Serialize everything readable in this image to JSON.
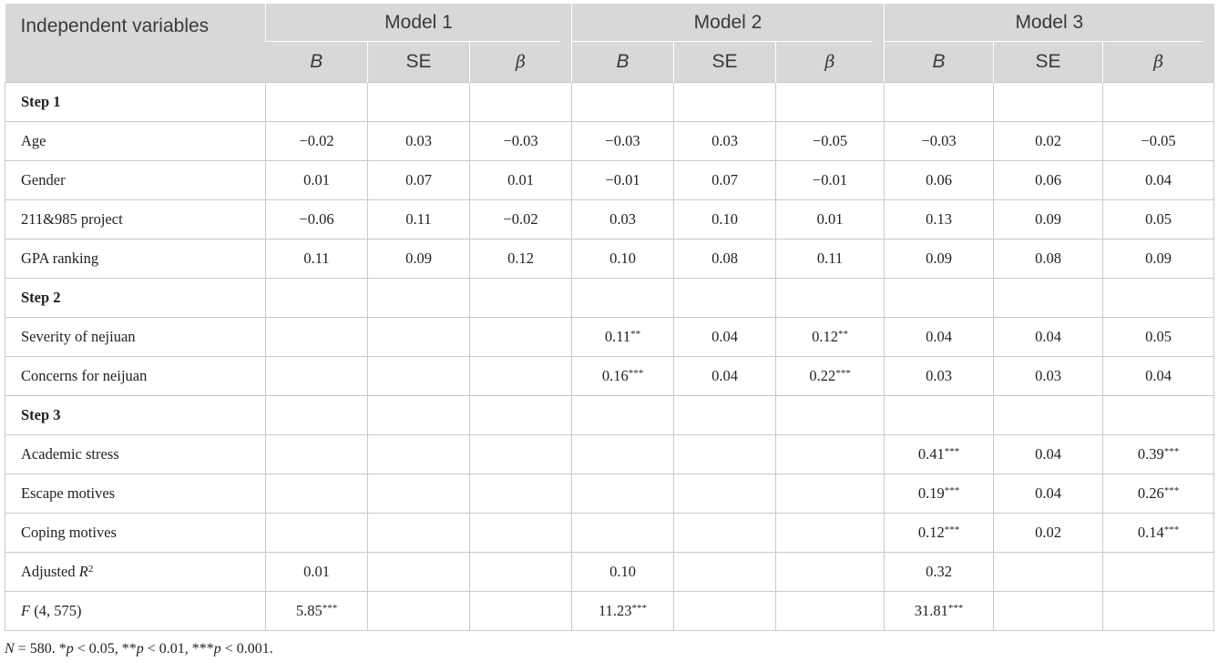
{
  "header": {
    "row_label": "Independent variables",
    "models": [
      "Model 1",
      "Model 2",
      "Model 3"
    ],
    "stats": [
      "B",
      "SE",
      "β",
      "B",
      "SE",
      "β",
      "B",
      "SE",
      "β"
    ]
  },
  "rows": [
    {
      "label": "Step 1",
      "type": "step",
      "cells": [
        "",
        "",
        "",
        "",
        "",
        "",
        "",
        "",
        ""
      ]
    },
    {
      "label": "Age",
      "type": "data",
      "cells": [
        "−0.02",
        "0.03",
        "−0.03",
        "−0.03",
        "0.03",
        "−0.05",
        "−0.03",
        "0.02",
        "−0.05"
      ]
    },
    {
      "label": "Gender",
      "type": "data",
      "cells": [
        "0.01",
        "0.07",
        "0.01",
        "−0.01",
        "0.07",
        "−0.01",
        "0.06",
        "0.06",
        "0.04"
      ]
    },
    {
      "label": "211&985 project",
      "type": "data",
      "cells": [
        "−0.06",
        "0.11",
        "−0.02",
        "0.03",
        "0.10",
        "0.01",
        "0.13",
        "0.09",
        "0.05"
      ]
    },
    {
      "label": "GPA ranking",
      "type": "data",
      "cells": [
        "0.11",
        "0.09",
        "0.12",
        "0.10",
        "0.08",
        "0.11",
        "0.09",
        "0.08",
        "0.09"
      ]
    },
    {
      "label": "Step 2",
      "type": "step",
      "cells": [
        "",
        "",
        "",
        "",
        "",
        "",
        "",
        "",
        ""
      ]
    },
    {
      "label": "Severity of nejiuan",
      "type": "data",
      "cells": [
        "",
        "",
        "",
        "0.11**",
        "0.04",
        "0.12**",
        "0.04",
        "0.04",
        "0.05"
      ]
    },
    {
      "label": "Concerns for neijuan",
      "type": "data",
      "cells": [
        "",
        "",
        "",
        "0.16***",
        "0.04",
        "0.22***",
        "0.03",
        "0.03",
        "0.04"
      ]
    },
    {
      "label": "Step 3",
      "type": "step",
      "cells": [
        "",
        "",
        "",
        "",
        "",
        "",
        "",
        "",
        ""
      ]
    },
    {
      "label": "Academic stress",
      "type": "data",
      "cells": [
        "",
        "",
        "",
        "",
        "",
        "",
        "0.41***",
        "0.04",
        "0.39***"
      ]
    },
    {
      "label": "Escape motives",
      "type": "data",
      "cells": [
        "",
        "",
        "",
        "",
        "",
        "",
        "0.19***",
        "0.04",
        "0.26***"
      ]
    },
    {
      "label": "Coping motives",
      "type": "data",
      "cells": [
        "",
        "",
        "",
        "",
        "",
        "",
        "0.12***",
        "0.02",
        "0.14***"
      ]
    },
    {
      "label": "Adjusted R2",
      "type": "r2",
      "cells": [
        "0.01",
        "",
        "",
        "0.10",
        "",
        "",
        "0.32",
        "",
        ""
      ]
    },
    {
      "label": "F (4, 575)",
      "type": "f",
      "cells": [
        "5.85***",
        "",
        "",
        "11.23***",
        "",
        "",
        "31.81***",
        "",
        ""
      ]
    }
  ],
  "note": "N = 580. *p < 0.05, **p < 0.01, ***p < 0.001."
}
